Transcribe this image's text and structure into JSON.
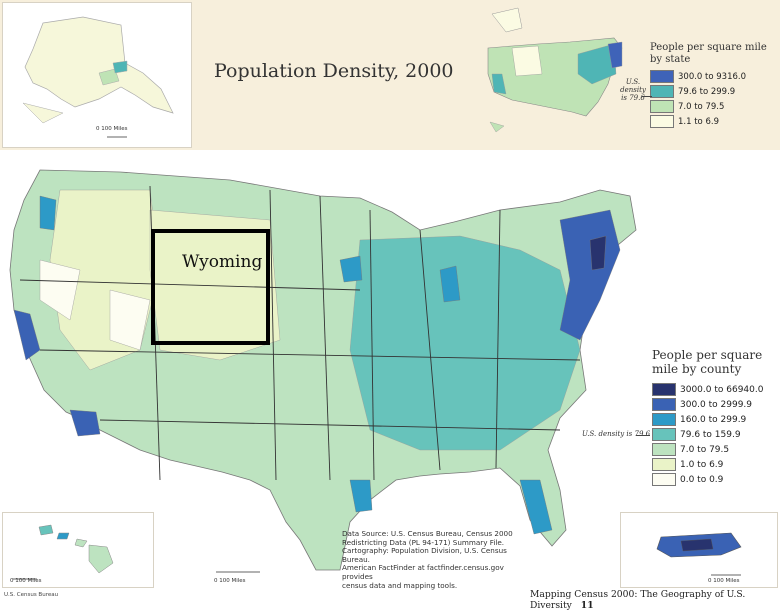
{
  "title": "Population Density, 2000",
  "state_legend": {
    "title_line1": "People per square mile",
    "title_line2": "by state",
    "classes": [
      {
        "label": "300.0 to 9316.0",
        "color": "#3f63b8"
      },
      {
        "label": "79.6 to 299.9",
        "color": "#4fb5b5"
      },
      {
        "label": "7.0 to 79.5",
        "color": "#bfe3b5"
      },
      {
        "label": "1.1 to 6.9",
        "color": "#fbfbe3"
      }
    ],
    "us_density_line1": "U.S.",
    "us_density_line2": "density",
    "us_density_line3": "is 79.6"
  },
  "county_legend": {
    "title_line1": "People per square",
    "title_line2": "mile by county",
    "classes": [
      {
        "label": "3000.0 to 66940.0",
        "color": "#28336e"
      },
      {
        "label": "300.0 to 2999.9",
        "color": "#3a62b4"
      },
      {
        "label": "160.0 to 299.9",
        "color": "#2d9ac7"
      },
      {
        "label": "79.6 to 159.9",
        "color": "#67c3bb"
      },
      {
        "label": "7.0 to 79.5",
        "color": "#bde3c0"
      },
      {
        "label": "1.0 to 6.9",
        "color": "#eaf3c8"
      },
      {
        "label": "0.0 to 0.9",
        "color": "#fdfdf2"
      }
    ],
    "us_density": "U.S. density is 79.6"
  },
  "scale_labels": {
    "alaska": "0   100 Miles",
    "hawaii": "0   100 Miles",
    "mainland": "0   100 Miles",
    "puerto_rico": "0   100 Miles"
  },
  "annotation": "Wyoming",
  "source": {
    "line1": "Data Source: U.S. Census Bureau, Census 2000",
    "line2": "Redistricting Data (PL 94-171) Summary File.",
    "line3": "Cartography: Population Division, U.S. Census Bureau.",
    "line4": "American FactFinder at factfinder.census.gov provides",
    "line5": "census data and mapping tools."
  },
  "footer": {
    "left": "U.S. Census Bureau",
    "right": "Mapping Census 2000: The Geography of U.S. Diversity",
    "page": "11"
  },
  "colors": {
    "background_band": "#f7efdc",
    "annotation_box": "#000000"
  }
}
